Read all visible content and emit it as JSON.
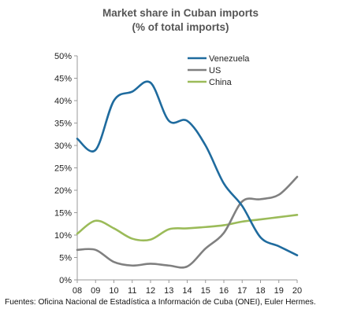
{
  "chart_data": {
    "type": "line",
    "title": "Market share in Cuban imports",
    "subtitle": "(% of total imports)",
    "x": [
      "08",
      "09",
      "10",
      "11",
      "12",
      "13",
      "14",
      "15",
      "16",
      "17",
      "18",
      "19",
      "20"
    ],
    "ylim": [
      0,
      50
    ],
    "yticks": [
      "0%",
      "5%",
      "10%",
      "15%",
      "20%",
      "25%",
      "30%",
      "35%",
      "40%",
      "45%",
      "50%"
    ],
    "grid": false,
    "legend_position": "top-right",
    "series": [
      {
        "name": "Venezuela",
        "color": "#1f6b9e",
        "values": [
          31.5,
          29,
          40,
          42,
          44,
          35.5,
          35.5,
          30,
          21.5,
          16.5,
          9.5,
          7.5,
          5.5
        ]
      },
      {
        "name": "US",
        "color": "#808080",
        "values": [
          6.7,
          6.7,
          4,
          3.2,
          3.6,
          3.2,
          3,
          7,
          10.5,
          17.5,
          18,
          19,
          23
        ]
      },
      {
        "name": "China",
        "color": "#9bbb59",
        "values": [
          10.3,
          13.2,
          11.5,
          9.2,
          9,
          11.3,
          11.5,
          11.8,
          12.2,
          13,
          13.5,
          14,
          14.5
        ]
      }
    ]
  },
  "source": "Fuentes: Oficina Nacional de Estadística a Información de Cuba (ONEI), Euler Hermes."
}
